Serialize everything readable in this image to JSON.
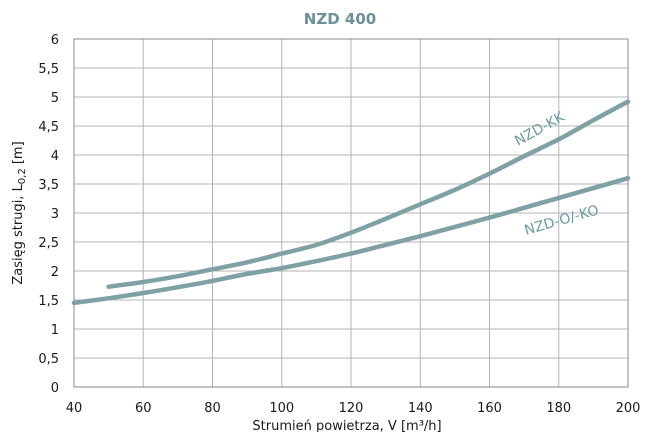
{
  "chart_data": {
    "type": "line",
    "title": "NZD 400",
    "xlabel_main": "Strumień powietrza, V [m³/h]",
    "ylabel_parts": {
      "pre": "Zasięg strugi, L",
      "sub": "0,2",
      "post": " [m]"
    },
    "xlim": [
      40,
      200
    ],
    "ylim": [
      0,
      6
    ],
    "x_ticks": [
      "40",
      "60",
      "80",
      "100",
      "120",
      "140",
      "160",
      "180",
      "200"
    ],
    "y_ticks": [
      "0",
      "0,5",
      "1",
      "1,5",
      "2",
      "2,5",
      "3",
      "3,5",
      "4",
      "4,5",
      "5",
      "5,5",
      "6"
    ],
    "grid": true,
    "series": [
      {
        "name": "NZD-KK",
        "color": "#7fa1a6",
        "x": [
          50,
          60,
          70,
          80,
          90,
          100,
          110,
          120,
          130,
          140,
          150,
          160,
          170,
          180,
          190,
          200
        ],
        "y": [
          1.73,
          1.81,
          1.91,
          2.03,
          2.15,
          2.3,
          2.45,
          2.66,
          2.9,
          3.15,
          3.4,
          3.68,
          3.98,
          4.27,
          4.6,
          4.92
        ]
      },
      {
        "name": "NZD-O/-KO",
        "color": "#7fa1a6",
        "x": [
          40,
          50,
          60,
          70,
          80,
          90,
          100,
          110,
          120,
          130,
          140,
          150,
          160,
          170,
          180,
          190,
          200
        ],
        "y": [
          1.45,
          1.53,
          1.62,
          1.72,
          1.83,
          1.95,
          2.05,
          2.17,
          2.3,
          2.45,
          2.6,
          2.76,
          2.92,
          3.09,
          3.26,
          3.43,
          3.6
        ]
      }
    ]
  }
}
